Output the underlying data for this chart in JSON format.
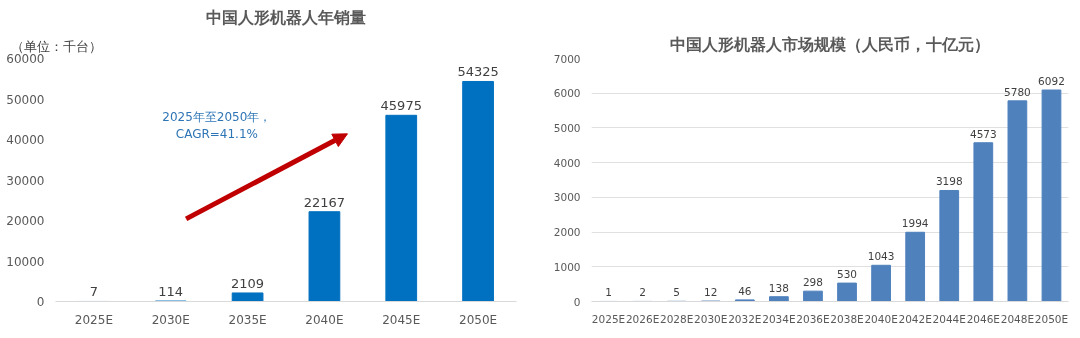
{
  "chart_data": [
    {
      "type": "bar",
      "title": "中国人形机器人年销量",
      "ylabel": "（单位：千台）",
      "categories": [
        "2025E",
        "2030E",
        "2035E",
        "2040E",
        "2045E",
        "2050E"
      ],
      "series": [
        {
          "color": "#0070c0",
          "values": [
            7,
            114,
            2109,
            22167,
            45975,
            54325
          ]
        }
      ],
      "ylim": [
        0,
        60000
      ],
      "yticks": [
        0,
        10000,
        20000,
        30000,
        40000,
        50000,
        60000
      ],
      "grid": false,
      "data_labels": true,
      "annotations": [
        "2025年至2050年，\nCAGR=41.1%"
      ]
    },
    {
      "type": "bar",
      "title": "中国人形机器人市场规模（人民币，十亿元）",
      "categories": [
        "2025E",
        "2026E",
        "2028E",
        "2030E",
        "2032E",
        "2034E",
        "2036E",
        "2038E",
        "2040E",
        "2042E",
        "2044E",
        "2046E",
        "2048E",
        "2050E"
      ],
      "series": [
        {
          "color": "#4f81bd",
          "values": [
            1,
            2,
            5,
            12,
            46,
            138,
            298,
            530,
            1043,
            1994,
            3198,
            4573,
            5780,
            6092
          ]
        }
      ],
      "ylim": [
        0,
        7000
      ],
      "yticks": [
        0,
        1000,
        2000,
        3000,
        4000,
        5000,
        6000,
        7000
      ],
      "grid": "y",
      "data_labels": true
    }
  ]
}
